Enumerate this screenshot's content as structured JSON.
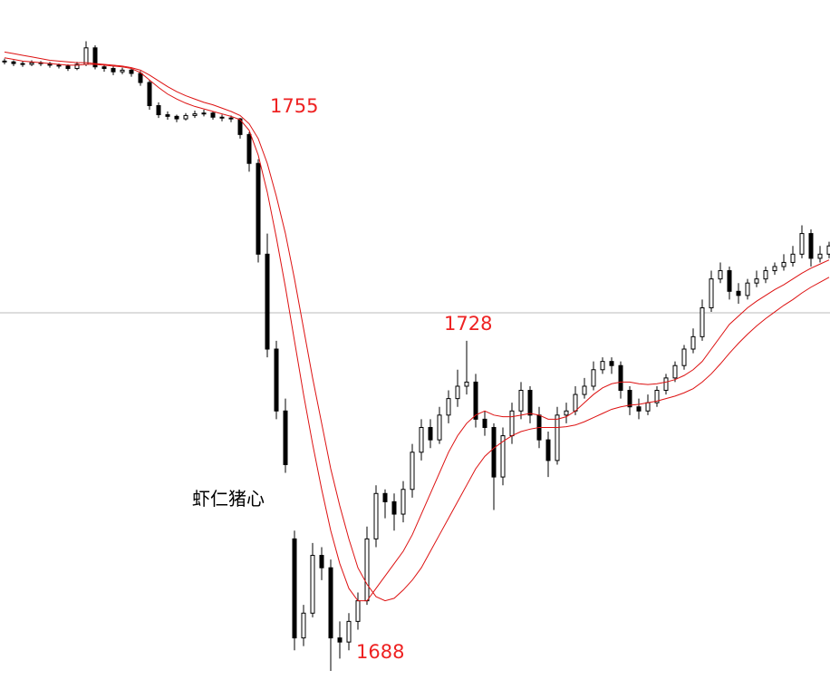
{
  "chart_data": {
    "type": "candlestick",
    "caption": "虾仁猪心",
    "annotations": [
      1755,
      1728,
      1688
    ],
    "ylim": [
      1686.9,
      1769.3
    ],
    "hline": 1731.4,
    "up_color": "#ffffff",
    "down_color": "#000000",
    "edge_color": "#000000",
    "open": [
      1761.9,
      1761.8,
      1761.6,
      1761.5,
      1761.7,
      1761.6,
      1761.4,
      1761.3,
      1761.0,
      1761.5,
      1763.5,
      1761.2,
      1761.0,
      1760.6,
      1760.8,
      1760.4,
      1759.3,
      1756.5,
      1755.4,
      1755.2,
      1754.9,
      1755.3,
      1755.5,
      1755.6,
      1755.1,
      1755.0,
      1754.9,
      1753.0,
      1749.5,
      1738.5,
      1727.0,
      1719.5,
      1704.0,
      1692.0,
      1695.0,
      1702.0,
      1700.5,
      1692.0,
      1691.5,
      1694.0,
      1696.5,
      1704.0,
      1709.5,
      1708.5,
      1707.0,
      1710.0,
      1714.5,
      1717.5,
      1716.0,
      1719.0,
      1721.0,
      1722.5,
      1723.0,
      1718.5,
      1717.5,
      1711.5,
      1716.5,
      1719.5,
      1722.0,
      1719.0,
      1716.0,
      1713.5,
      1719.0,
      1719.5,
      1721.5,
      1722.5,
      1724.5,
      1725.5,
      1725.0,
      1722.0,
      1720.0,
      1719.5,
      1720.5,
      1722.0,
      1723.5,
      1725.0,
      1727.0,
      1728.5,
      1732.0,
      1735.5,
      1736.5,
      1734.0,
      1733.5,
      1735.0,
      1735.5,
      1736.5,
      1737.0,
      1737.5,
      1738.5,
      1741.0,
      1738.0,
      1738.5
    ],
    "high": [
      1762.2,
      1762.0,
      1761.9,
      1762.0,
      1761.9,
      1761.8,
      1761.6,
      1761.5,
      1761.8,
      1764.3,
      1763.8,
      1761.5,
      1761.3,
      1761.1,
      1761.0,
      1760.7,
      1759.6,
      1756.9,
      1755.8,
      1755.4,
      1755.6,
      1755.9,
      1756.0,
      1755.8,
      1755.4,
      1755.3,
      1755.0,
      1753.3,
      1750.0,
      1741.0,
      1728.0,
      1721.0,
      1705.0,
      1696.0,
      1703.5,
      1703.0,
      1701.5,
      1694.0,
      1695.0,
      1697.5,
      1705.5,
      1710.5,
      1710.0,
      1709.5,
      1711.0,
      1715.5,
      1718.5,
      1718.5,
      1720.0,
      1722.0,
      1724.5,
      1728.0,
      1724.0,
      1719.5,
      1718.0,
      1717.5,
      1720.5,
      1723.0,
      1722.5,
      1720.0,
      1717.0,
      1720.0,
      1720.5,
      1722.5,
      1723.5,
      1725.5,
      1726.0,
      1726.0,
      1725.5,
      1722.5,
      1721.0,
      1721.5,
      1722.5,
      1724.0,
      1725.5,
      1727.5,
      1729.5,
      1733.0,
      1736.5,
      1737.5,
      1737.0,
      1735.0,
      1735.5,
      1736.5,
      1737.0,
      1737.5,
      1738.5,
      1739.5,
      1742.0,
      1741.5,
      1739.5,
      1740.0
    ],
    "low": [
      1761.5,
      1761.3,
      1761.2,
      1761.3,
      1761.3,
      1761.1,
      1761.0,
      1760.7,
      1760.8,
      1761.3,
      1760.9,
      1760.6,
      1760.2,
      1760.3,
      1760.0,
      1758.9,
      1756.0,
      1755.0,
      1754.8,
      1754.5,
      1754.7,
      1755.0,
      1755.2,
      1754.8,
      1754.6,
      1754.5,
      1752.5,
      1748.5,
      1737.5,
      1726.0,
      1718.5,
      1712.0,
      1690.5,
      1691.0,
      1694.5,
      1699.0,
      1688.0,
      1689.5,
      1690.5,
      1693.0,
      1696.0,
      1703.0,
      1706.5,
      1705.0,
      1706.0,
      1709.0,
      1713.5,
      1715.0,
      1715.5,
      1718.0,
      1720.0,
      1721.5,
      1717.5,
      1716.5,
      1707.5,
      1710.5,
      1715.5,
      1718.5,
      1718.0,
      1715.0,
      1711.5,
      1713.0,
      1718.0,
      1719.0,
      1721.0,
      1722.0,
      1724.0,
      1724.0,
      1721.0,
      1719.0,
      1718.5,
      1719.0,
      1720.0,
      1721.5,
      1723.0,
      1724.5,
      1726.5,
      1728.0,
      1731.5,
      1735.0,
      1733.0,
      1732.5,
      1733.0,
      1734.5,
      1735.0,
      1736.0,
      1736.5,
      1737.0,
      1738.0,
      1737.0,
      1737.5,
      1738.0
    ],
    "close": [
      1761.8,
      1761.6,
      1761.5,
      1761.7,
      1761.6,
      1761.4,
      1761.3,
      1761.0,
      1761.5,
      1763.5,
      1761.2,
      1761.0,
      1760.6,
      1760.8,
      1760.4,
      1759.3,
      1756.5,
      1755.4,
      1755.2,
      1754.9,
      1755.3,
      1755.5,
      1755.6,
      1755.1,
      1755.0,
      1754.9,
      1753.0,
      1749.5,
      1738.5,
      1727.0,
      1719.5,
      1713.0,
      1692.0,
      1695.0,
      1702.0,
      1700.5,
      1692.0,
      1691.5,
      1694.0,
      1696.5,
      1704.0,
      1709.5,
      1708.5,
      1707.0,
      1710.0,
      1714.5,
      1717.5,
      1716.0,
      1719.0,
      1721.0,
      1722.5,
      1723.0,
      1718.5,
      1717.5,
      1711.5,
      1716.5,
      1719.5,
      1722.0,
      1719.0,
      1716.0,
      1713.5,
      1719.0,
      1719.5,
      1721.5,
      1722.5,
      1724.5,
      1725.5,
      1725.0,
      1722.0,
      1720.0,
      1719.5,
      1720.5,
      1722.0,
      1723.5,
      1725.0,
      1727.0,
      1728.5,
      1732.0,
      1735.5,
      1736.5,
      1734.0,
      1733.5,
      1735.0,
      1735.5,
      1736.5,
      1737.0,
      1737.5,
      1738.5,
      1741.0,
      1738.0,
      1738.5,
      1739.5
    ],
    "ma_lines": [
      {
        "color": "#dd1111",
        "values": [
          1762.3,
          1762.1,
          1761.9,
          1761.8,
          1761.7,
          1761.6,
          1761.5,
          1761.4,
          1761.4,
          1761.5,
          1761.5,
          1761.4,
          1761.3,
          1761.2,
          1761.0,
          1760.5,
          1759.6,
          1758.7,
          1757.9,
          1757.3,
          1756.8,
          1756.4,
          1756.1,
          1755.8,
          1755.5,
          1755.2,
          1754.8,
          1753.5,
          1750.5,
          1746.0,
          1740.5,
          1734.5,
          1728.0,
          1721.5,
          1715.5,
          1710.0,
          1705.0,
          1701.0,
          1698.0,
          1696.5,
          1696.5,
          1698.0,
          1699.5,
          1701.0,
          1702.5,
          1704.5,
          1707.0,
          1709.5,
          1712.0,
          1714.5,
          1716.5,
          1718.0,
          1719.0,
          1719.5,
          1719.0,
          1718.8,
          1718.8,
          1719.0,
          1719.2,
          1719.0,
          1718.5,
          1718.5,
          1718.8,
          1719.5,
          1720.5,
          1721.5,
          1722.3,
          1722.8,
          1723.0,
          1723.0,
          1722.8,
          1722.7,
          1722.8,
          1723.0,
          1723.3,
          1723.8,
          1724.5,
          1725.5,
          1727.0,
          1728.5,
          1730.0,
          1731.0,
          1732.0,
          1732.8,
          1733.5,
          1734.2,
          1734.8,
          1735.5,
          1736.2,
          1736.8,
          1737.3,
          1737.8
        ]
      },
      {
        "color": "#dd1111",
        "values": [
          1763.0,
          1762.8,
          1762.6,
          1762.4,
          1762.2,
          1762.0,
          1761.9,
          1761.8,
          1761.7,
          1761.7,
          1761.6,
          1761.5,
          1761.4,
          1761.3,
          1761.1,
          1760.8,
          1760.2,
          1759.5,
          1758.8,
          1758.2,
          1757.7,
          1757.3,
          1756.9,
          1756.6,
          1756.2,
          1755.8,
          1755.3,
          1754.3,
          1752.5,
          1749.5,
          1745.5,
          1741.0,
          1735.5,
          1729.5,
          1723.5,
          1718.0,
          1712.5,
          1708.0,
          1704.0,
          1700.5,
          1698.5,
          1697.0,
          1696.5,
          1696.8,
          1697.8,
          1699.0,
          1700.5,
          1702.5,
          1704.5,
          1706.5,
          1708.5,
          1710.5,
          1712.5,
          1714.0,
          1715.0,
          1715.8,
          1716.5,
          1717.0,
          1717.3,
          1717.5,
          1717.5,
          1717.5,
          1717.6,
          1717.8,
          1718.2,
          1718.7,
          1719.2,
          1719.7,
          1720.0,
          1720.2,
          1720.3,
          1720.5,
          1720.7,
          1721.0,
          1721.3,
          1721.7,
          1722.2,
          1723.0,
          1724.0,
          1725.2,
          1726.5,
          1727.7,
          1728.8,
          1729.8,
          1730.7,
          1731.5,
          1732.3,
          1733.0,
          1733.8,
          1734.5,
          1735.1,
          1735.7
        ]
      }
    ]
  }
}
